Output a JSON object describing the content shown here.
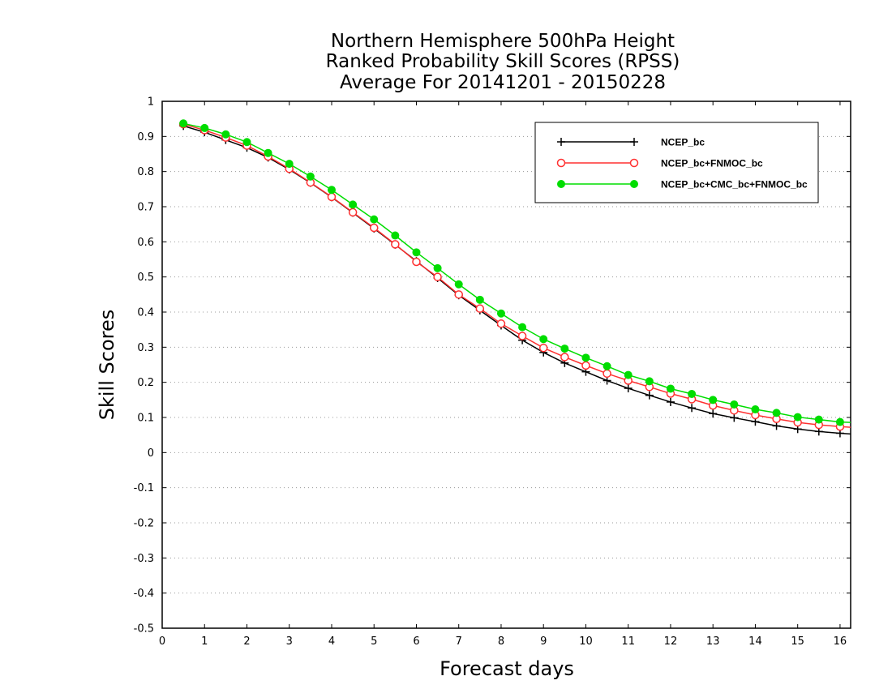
{
  "chart_data": {
    "type": "line",
    "title": [
      "Northern Hemisphere 500hPa Height",
      "Ranked Probability Skill Scores (RPSS)",
      "Average For 20141201 - 20150228"
    ],
    "xlabel": "Forecast days",
    "ylabel": "Skill Scores",
    "xlim": [
      0,
      16.25
    ],
    "ylim": [
      -0.5,
      1.0
    ],
    "x_ticks": [
      0,
      1,
      2,
      3,
      4,
      5,
      6,
      7,
      8,
      9,
      10,
      11,
      12,
      13,
      14,
      15,
      16
    ],
    "y_ticks": [
      -0.5,
      -0.4,
      -0.3,
      -0.2,
      -0.1,
      0,
      0.1,
      0.2,
      0.3,
      0.4,
      0.5,
      0.6,
      0.7,
      0.8,
      0.9,
      1
    ],
    "y_tick_labels": [
      "-0.5",
      "-0.4",
      "-0.3",
      "-0.2",
      "-0.1",
      "0",
      "0.1",
      "0.2",
      "0.3",
      "0.4",
      "0.5",
      "0.6",
      "0.7",
      "0.8",
      "0.9",
      "1"
    ],
    "grid": "horizontal dotted",
    "legend_position": "top-right",
    "x": [
      0.5,
      1.0,
      1.5,
      2.0,
      2.5,
      3.0,
      3.5,
      4.0,
      4.5,
      5.0,
      5.5,
      6.0,
      6.5,
      7.0,
      7.5,
      8.0,
      8.5,
      9.0,
      9.5,
      10.0,
      10.5,
      11.0,
      11.5,
      12.0,
      12.5,
      13.0,
      13.5,
      14.0,
      14.5,
      15.0,
      15.5,
      16.0,
      16.25
    ],
    "series": [
      {
        "name": "NCEP_bc",
        "color": "#000000",
        "marker": "plus",
        "values": [
          0.93,
          0.912,
          0.89,
          0.868,
          0.84,
          0.806,
          0.768,
          0.727,
          0.683,
          0.638,
          0.592,
          0.545,
          0.497,
          0.448,
          0.405,
          0.362,
          0.32,
          0.285,
          0.255,
          0.23,
          0.205,
          0.183,
          0.163,
          0.144,
          0.127,
          0.111,
          0.099,
          0.088,
          0.076,
          0.067,
          0.06,
          0.055,
          0.053
        ]
      },
      {
        "name": "NCEP_bc+FNMOC_bc",
        "color": "#ff3030",
        "marker": "open-circle",
        "values": [
          0.935,
          0.918,
          0.897,
          0.874,
          0.843,
          0.808,
          0.769,
          0.728,
          0.684,
          0.64,
          0.593,
          0.543,
          0.5,
          0.45,
          0.41,
          0.367,
          0.332,
          0.298,
          0.272,
          0.248,
          0.225,
          0.205,
          0.187,
          0.168,
          0.152,
          0.134,
          0.12,
          0.107,
          0.096,
          0.086,
          0.079,
          0.074,
          0.072
        ]
      },
      {
        "name": "NCEP_bc+CMC_bc+FNMOC_bc",
        "color": "#00dd00",
        "marker": "filled-circle",
        "values": [
          0.937,
          0.924,
          0.906,
          0.884,
          0.853,
          0.822,
          0.786,
          0.748,
          0.706,
          0.664,
          0.618,
          0.57,
          0.525,
          0.479,
          0.435,
          0.396,
          0.357,
          0.323,
          0.296,
          0.27,
          0.246,
          0.221,
          0.203,
          0.182,
          0.167,
          0.15,
          0.137,
          0.123,
          0.113,
          0.101,
          0.094,
          0.087,
          0.086
        ]
      }
    ]
  }
}
